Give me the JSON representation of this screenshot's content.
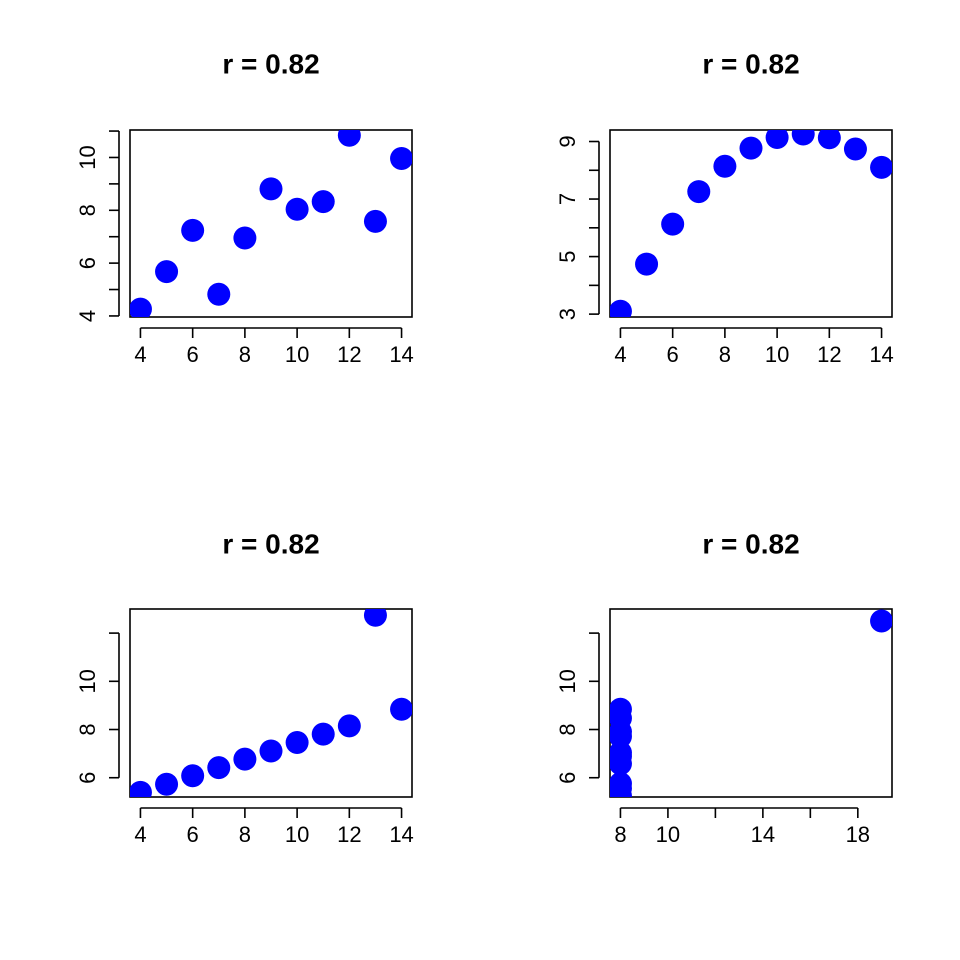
{
  "chart_data": [
    {
      "type": "scatter",
      "title": "r =  0.82",
      "xlabel": "",
      "ylabel": "",
      "xlim": [
        3.6,
        14.4
      ],
      "ylim": [
        3.96,
        11.04
      ],
      "xticks": [
        4,
        6,
        8,
        10,
        12,
        14
      ],
      "yticks": [
        4,
        6,
        8,
        10
      ],
      "y_minor_ticks": [
        5,
        7,
        9,
        11
      ],
      "point_color": "#0000FF",
      "series": [
        {
          "x": [
            10,
            8,
            13,
            9,
            11,
            14,
            6,
            4,
            12,
            7,
            5
          ],
          "y": [
            8.04,
            6.95,
            7.58,
            8.81,
            8.33,
            9.96,
            7.24,
            4.26,
            10.84,
            4.82,
            5.68
          ]
        }
      ]
    },
    {
      "type": "scatter",
      "title": "r =  0.82",
      "xlabel": "",
      "ylabel": "",
      "xlim": [
        3.6,
        14.4
      ],
      "ylim": [
        2.9,
        9.4
      ],
      "xticks": [
        4,
        6,
        8,
        10,
        12,
        14
      ],
      "yticks": [
        3,
        5,
        7,
        9
      ],
      "y_minor_ticks": [
        4,
        6,
        8
      ],
      "point_color": "#0000FF",
      "series": [
        {
          "x": [
            10,
            8,
            13,
            9,
            11,
            14,
            6,
            4,
            12,
            7,
            5
          ],
          "y": [
            9.14,
            8.14,
            8.74,
            8.77,
            9.26,
            8.1,
            6.13,
            3.1,
            9.13,
            7.26,
            4.74
          ]
        }
      ]
    },
    {
      "type": "scatter",
      "title": "r =  0.82",
      "xlabel": "",
      "ylabel": "",
      "xlim": [
        3.6,
        14.4
      ],
      "ylim": [
        5.2,
        13.0
      ],
      "xticks": [
        4,
        6,
        8,
        10,
        12,
        14
      ],
      "yticks": [
        6,
        8,
        10
      ],
      "y_minor_ticks": [
        12
      ],
      "point_color": "#0000FF",
      "series": [
        {
          "x": [
            10,
            8,
            13,
            9,
            11,
            14,
            6,
            4,
            12,
            7,
            5
          ],
          "y": [
            7.46,
            6.77,
            12.74,
            7.11,
            7.81,
            8.84,
            6.08,
            5.39,
            8.15,
            6.42,
            5.73
          ]
        }
      ]
    },
    {
      "type": "scatter",
      "title": "r =  0.82",
      "xlabel": "",
      "ylabel": "",
      "xlim": [
        7.56,
        19.44
      ],
      "ylim": [
        5.2,
        13.0
      ],
      "xticks": [
        8,
        10,
        14,
        18
      ],
      "x_minor_ticks": [
        12,
        16
      ],
      "yticks": [
        6,
        8,
        10
      ],
      "y_minor_ticks": [
        12
      ],
      "point_color": "#0000FF",
      "series": [
        {
          "x": [
            8,
            8,
            8,
            8,
            8,
            8,
            8,
            19,
            8,
            8,
            8
          ],
          "y": [
            6.58,
            5.76,
            7.71,
            8.84,
            8.47,
            7.04,
            5.25,
            12.5,
            5.56,
            7.91,
            6.89
          ]
        }
      ]
    }
  ]
}
